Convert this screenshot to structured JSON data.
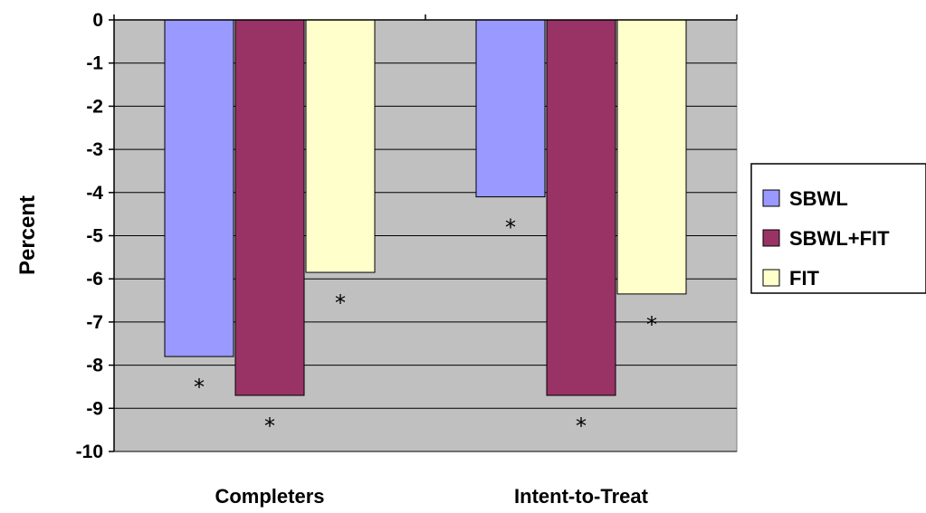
{
  "chart_data": {
    "type": "bar",
    "title": "",
    "xlabel": "",
    "ylabel": "Percent",
    "ylim": [
      -10,
      0
    ],
    "yticks": [
      0,
      -1,
      -2,
      -3,
      -4,
      -5,
      -6,
      -7,
      -8,
      -9,
      -10
    ],
    "ytick_labels": [
      "0",
      "-1",
      "-2",
      "-3",
      "-4",
      "-5",
      "-6",
      "-7",
      "-8",
      "-9",
      "-10"
    ],
    "grid": true,
    "legend_position": "right",
    "categories": [
      "Completers",
      "Intent-to-Treat"
    ],
    "series": [
      {
        "name": "SBWL",
        "color": "#9999ff",
        "values": [
          -7.8,
          -4.1
        ]
      },
      {
        "name": "SBWL+FIT",
        "color": "#993366",
        "values": [
          -8.7,
          -8.7
        ]
      },
      {
        "name": "FIT",
        "color": "#ffffcc",
        "values": [
          -5.85,
          -6.35
        ]
      }
    ],
    "annotations": [
      {
        "text": "*",
        "category": "Completers",
        "series": "SBWL"
      },
      {
        "text": "*",
        "category": "Completers",
        "series": "SBWL+FIT"
      },
      {
        "text": "*",
        "category": "Completers",
        "series": "FIT"
      },
      {
        "text": "*",
        "category": "Intent-to-Treat",
        "series": "SBWL"
      },
      {
        "text": "*",
        "category": "Intent-to-Treat",
        "series": "SBWL+FIT"
      },
      {
        "text": "*",
        "category": "Intent-to-Treat",
        "series": "FIT"
      }
    ],
    "plot_background": "#c0c0c0"
  }
}
